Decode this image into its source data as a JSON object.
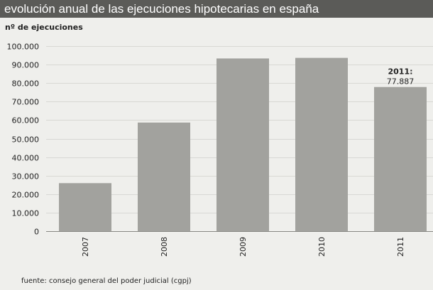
{
  "header": {
    "title": "evolución anual de las ejecuciones hipotecarias en españa"
  },
  "footer": {
    "source": "fuente: consejo general del poder judicial (cgpj)"
  },
  "colors": {
    "bar": "#a2a29e",
    "title_background": "#5b5b58",
    "background": "#efefec",
    "grid": "#d8d8d4"
  },
  "chart_data": {
    "type": "bar",
    "title": "evolución anual de las ejecuciones hipotecarias en españa",
    "ylabel": "nº de ejecuciones",
    "xlabel": "",
    "categories": [
      "2007",
      "2008",
      "2009",
      "2010",
      "2011"
    ],
    "values": [
      25943,
      58686,
      93319,
      93636,
      77887
    ],
    "ylim": [
      0,
      100000
    ],
    "yticks": [
      0,
      10000,
      20000,
      30000,
      40000,
      50000,
      60000,
      70000,
      80000,
      90000,
      100000
    ],
    "ytick_labels": [
      "0",
      "10.000",
      "20.000",
      "30.000",
      "40.000",
      "50.000",
      "60.000",
      "70.000",
      "80.000",
      "90.000",
      "100.000"
    ],
    "annotations": [
      {
        "category": "2011",
        "label": "2011:",
        "value_text": "77.887"
      }
    ],
    "grid": true,
    "legend": "none"
  }
}
